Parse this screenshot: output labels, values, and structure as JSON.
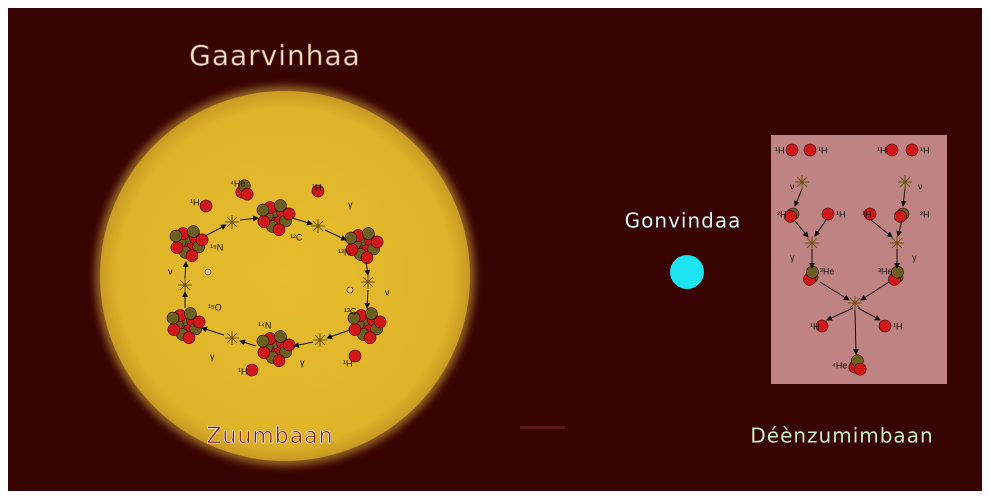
{
  "titles": {
    "top": "Gaarvinhaa",
    "star": "Zuumbaan",
    "middle": "Gonvindaa",
    "right": "Déènzumimbaan"
  },
  "cno_cycle": {
    "labels": [
      "¹H",
      "⁴He",
      "¹²C",
      "¹H",
      "γ",
      "¹³N",
      "ν",
      "¹³C",
      "¹H",
      "γ",
      "¹⁴N",
      "¹H",
      "γ",
      "¹⁵O",
      "ν",
      "¹⁵N"
    ]
  },
  "pp_chain": {
    "labels": [
      "¹H",
      "¹H",
      "¹H",
      "¹H",
      "ν",
      "ν",
      "²H",
      "¹H",
      "¹H",
      "²H",
      "γ",
      "γ",
      "³He",
      "³He",
      "¹H",
      "¹H",
      "⁴He"
    ]
  }
}
